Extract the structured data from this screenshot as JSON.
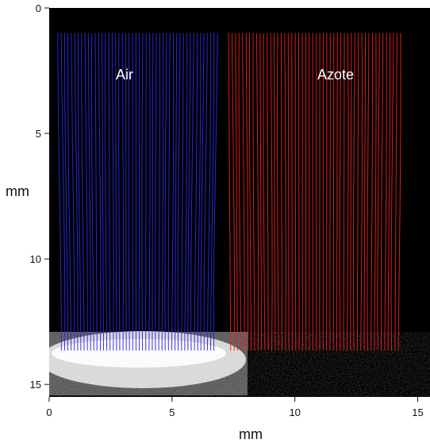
{
  "image": {
    "x_label": "mm",
    "y_label": "mm",
    "x_ticks": [
      "0",
      "5",
      "10",
      "15"
    ],
    "y_ticks": [
      "0",
      "5",
      "10",
      "15"
    ],
    "x_range": [
      0,
      15.5
    ],
    "y_range": [
      0,
      15.5
    ],
    "background_color": "#000000",
    "regions": [
      {
        "label": "Air",
        "color": "#2a2ae0",
        "x_start": 0.35,
        "x_end": 6.85,
        "y_top": 1.0,
        "y_bottom": 13.65,
        "line_count": 48
      },
      {
        "label": "Azote",
        "color": "#e82020",
        "x_start": 7.3,
        "x_end": 14.3,
        "y_top": 1.0,
        "y_bottom": 13.65,
        "line_count": 50
      }
    ],
    "bright_zone_color": "#ffffff"
  }
}
